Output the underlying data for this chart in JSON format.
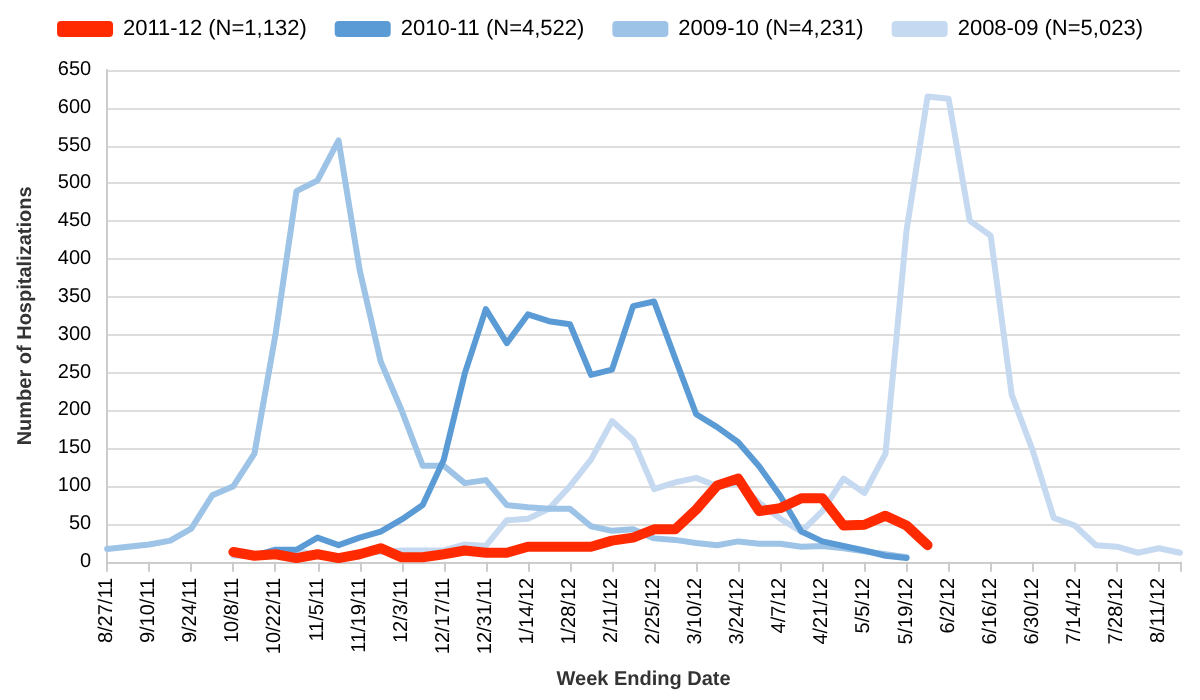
{
  "chart_data": {
    "type": "line",
    "xlabel": "Week Ending Date",
    "ylabel": "Number of Hospitalizations",
    "categories": [
      "8/27/11",
      null,
      "9/10/11",
      null,
      "9/24/11",
      null,
      "10/8/11",
      null,
      "10/22/11",
      null,
      "11/5/11",
      null,
      "11/19/11",
      null,
      "12/3/11",
      null,
      "12/17/11",
      null,
      "12/31/11",
      null,
      "1/14/12",
      null,
      "1/28/12",
      null,
      "2/11/12",
      null,
      "2/25/12",
      null,
      "3/10/12",
      null,
      "3/24/12",
      null,
      "4/7/12",
      null,
      "4/21/12",
      null,
      "5/5/12",
      null,
      "5/19/12",
      null,
      "6/2/12",
      null,
      "6/16/12",
      null,
      "6/30/12",
      null,
      "7/14/12",
      null,
      "7/28/12",
      null,
      "8/11/12",
      null
    ],
    "series": [
      {
        "name": "2011-12 (N=1,132)",
        "color": "#ff2a00",
        "values": [
          null,
          null,
          null,
          null,
          null,
          null,
          13,
          8,
          10,
          5,
          10,
          5,
          10,
          18,
          6,
          6,
          10,
          15,
          12,
          12,
          20,
          20,
          20,
          20,
          28,
          32,
          43,
          43,
          69,
          101,
          110,
          67,
          71,
          84,
          84,
          48,
          49,
          61,
          48,
          22,
          null,
          null,
          null,
          null,
          null,
          null,
          null,
          null,
          null,
          null,
          null,
          null
        ]
      },
      {
        "name": "2010-11 (N=4,522)",
        "color": "#5b9bd5",
        "values": [
          null,
          null,
          null,
          null,
          null,
          null,
          null,
          8,
          16,
          16,
          32,
          22,
          32,
          40,
          56,
          75,
          135,
          249,
          334,
          289,
          327,
          318,
          314,
          247,
          254,
          338,
          344,
          269,
          195,
          178,
          158,
          126,
          87,
          40,
          27,
          21,
          15,
          8,
          5,
          null,
          null,
          null,
          null,
          null,
          null,
          null,
          null,
          null,
          null,
          null,
          null,
          null
        ]
      },
      {
        "name": "2009-10 (N=4,231)",
        "color": "#9dc3e6",
        "values": [
          17,
          20,
          23,
          28,
          44,
          88,
          100,
          143,
          300,
          490,
          504,
          557,
          386,
          265,
          200,
          127,
          127,
          104,
          108,
          75,
          72,
          70,
          70,
          47,
          41,
          43,
          31,
          29,
          25,
          22,
          27,
          24,
          24,
          20,
          21,
          18,
          14,
          10,
          6,
          null,
          null,
          null,
          null,
          null,
          null,
          null,
          null,
          null,
          null,
          null,
          null,
          null
        ]
      },
      {
        "name": "2008-09 (N=5,023)",
        "color": "#c5d9f1",
        "values": [
          null,
          null,
          null,
          null,
          null,
          null,
          8,
          8,
          10,
          15,
          8,
          3,
          12,
          13,
          15,
          15,
          15,
          23,
          21,
          55,
          57,
          70,
          100,
          135,
          186,
          161,
          96,
          105,
          111,
          100,
          104,
          78,
          57,
          40,
          67,
          110,
          91,
          143,
          438,
          615,
          612,
          451,
          431,
          221,
          147,
          58,
          48,
          22,
          20,
          12,
          18,
          12
        ]
      }
    ],
    "ylim": [
      0,
      650
    ],
    "yticks": [
      0,
      50,
      100,
      150,
      200,
      250,
      300,
      350,
      400,
      450,
      500,
      550,
      600,
      650
    ],
    "grid": "y",
    "legend": "top",
    "marker": "none",
    "line_style": "solid"
  }
}
